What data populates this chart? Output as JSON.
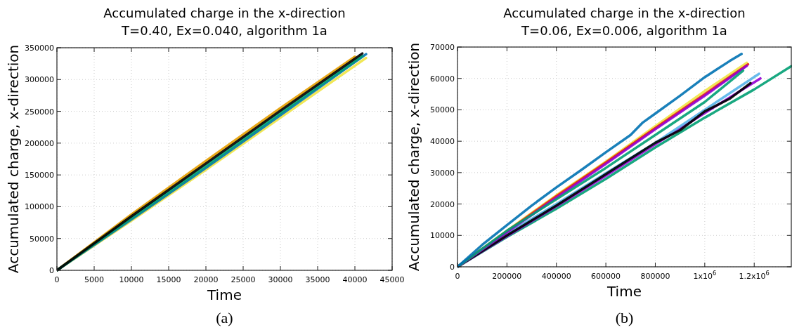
{
  "chart_data": [
    {
      "type": "line",
      "title": "Accumulated charge in the x-direction",
      "subtitle": "T=0.40, Ex=0.040, algorithm 1a",
      "xlabel": "Time",
      "ylabel": "Accumulated charge, x-direction",
      "annotations": [
        "(a)"
      ],
      "xlim": [
        0,
        45000
      ],
      "xticks": [
        0,
        5000,
        10000,
        15000,
        20000,
        25000,
        30000,
        35000,
        40000,
        45000
      ],
      "ylim": [
        0,
        350000
      ],
      "yticks": [
        0,
        50000,
        100000,
        150000,
        200000,
        250000,
        300000,
        350000
      ],
      "grid": true,
      "marker": "none",
      "line_style": "solid",
      "series": [
        {
          "color": "#f0e442",
          "x": [
            0,
            10000,
            20000,
            30000,
            41500
          ],
          "values": [
            0,
            78000,
            158000,
            240000,
            334000
          ]
        },
        {
          "color": "#e69f00",
          "x": [
            0,
            10000,
            20000,
            30000,
            40000
          ],
          "values": [
            0,
            88000,
            172000,
            255000,
            336000
          ]
        },
        {
          "color": "#0072b2",
          "x": [
            0,
            10000,
            20000,
            30000,
            41500
          ],
          "values": [
            0,
            80000,
            161000,
            244000,
            340000
          ]
        },
        {
          "color": "#009e73",
          "x": [
            0,
            10000,
            20000,
            30000,
            41000
          ],
          "values": [
            0,
            82000,
            164000,
            247000,
            337000
          ]
        },
        {
          "color": "#000000",
          "x": [
            0,
            10000,
            20000,
            30000,
            41000
          ],
          "values": [
            0,
            85000,
            168000,
            251000,
            341000
          ]
        }
      ]
    },
    {
      "type": "line",
      "title": "Accumulated charge in the x-direction",
      "subtitle": "T=0.06, Ex=0.006, algorithm 1a",
      "xlabel": "Time",
      "ylabel": "Accumulated charge, x-direction",
      "annotations": [
        "(b)"
      ],
      "xlim": [
        0,
        1350000
      ],
      "xticks": [
        0,
        200000,
        400000,
        600000,
        800000,
        {
          "value": 1000000,
          "label": "1x10$^{6}$"
        },
        {
          "value": 1200000,
          "label": "1.2x10$^{6}$"
        }
      ],
      "ylim": [
        0,
        70000
      ],
      "yticks": [
        0,
        10000,
        20000,
        30000,
        40000,
        50000,
        60000,
        70000
      ],
      "grid": true,
      "marker": "none",
      "line_style": "solid",
      "series": [
        {
          "color": "#009e73",
          "x": [
            0,
            200000,
            400000,
            600000,
            800000,
            1000000,
            1200000,
            1350000
          ],
          "values": [
            0,
            9500,
            18500,
            28000,
            38000,
            47500,
            56500,
            63900
          ]
        },
        {
          "color": "#9400d3",
          "x": [
            0,
            200000,
            400000,
            600000,
            800000,
            1000000,
            1225000
          ],
          "values": [
            0,
            9800,
            19300,
            29000,
            39000,
            49000,
            60000
          ]
        },
        {
          "color": "#56b4e9",
          "x": [
            0,
            200000,
            400000,
            600000,
            800000,
            1000000,
            1220000
          ],
          "values": [
            0,
            10500,
            20000,
            29800,
            39500,
            50000,
            61500
          ]
        },
        {
          "color": "#000000",
          "x": [
            0,
            200000,
            400000,
            600000,
            800000,
            900000,
            1000000,
            1100000,
            1185000
          ],
          "values": [
            0,
            10000,
            19500,
            29500,
            39500,
            43500,
            49500,
            53500,
            58500
          ]
        },
        {
          "color": "#f0e442",
          "x": [
            0,
            200000,
            400000,
            600000,
            800000,
            1000000,
            1170000
          ],
          "values": [
            0,
            11500,
            22800,
            33500,
            44800,
            56000,
            65000
          ]
        },
        {
          "color": "#e51e10",
          "x": [
            0,
            200000,
            400000,
            600000,
            800000,
            1000000,
            1175000
          ],
          "values": [
            0,
            11300,
            22500,
            33200,
            44200,
            55000,
            64500
          ]
        },
        {
          "color": "#9400d3",
          "x": [
            0,
            200000,
            400000,
            600000,
            800000,
            1000000,
            1170000
          ],
          "values": [
            0,
            11000,
            22000,
            32800,
            43800,
            54500,
            64000
          ]
        },
        {
          "color": "#009e73",
          "x": [
            0,
            200000,
            400000,
            600000,
            800000,
            1000000,
            1155000
          ],
          "values": [
            0,
            11500,
            21500,
            31500,
            42000,
            52500,
            62500
          ]
        },
        {
          "color": "#0072b2",
          "x": [
            0,
            100000,
            200000,
            300000,
            400000,
            500000,
            600000,
            700000,
            750000,
            800000,
            900000,
            1000000,
            1100000,
            1149000
          ],
          "values": [
            0,
            7000,
            13300,
            19500,
            25300,
            30800,
            36500,
            42000,
            46000,
            48800,
            54500,
            60400,
            65500,
            67800
          ]
        }
      ]
    }
  ]
}
